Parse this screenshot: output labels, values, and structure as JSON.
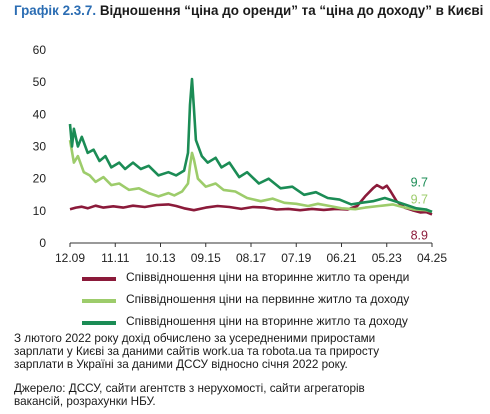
{
  "title_lead": "Графік 2.3.7.",
  "title_rest": "Відношення “ціна до оренди” та “ціна до доходу” в Києві",
  "note_lines": [
    "З лютого 2022 року дохід обчислено за усередненими приростами",
    "зарплати у Києві за даними сайтів work.ua та robota.ua та приросту",
    "зарплати в Україні за даними ДССУ відносно січня 2022 року."
  ],
  "source_lines": [
    "Джерело: ДССУ, сайти агентств з нерухомості, сайти агрегаторів",
    "вакансій, розрахунки НБУ."
  ],
  "chart_data": {
    "type": "line",
    "title": "Відношення “ціна до оренди” та “ціна до доходу” в Києві",
    "x_tick_labels": [
      "12.09",
      "11.11",
      "10.13",
      "09.15",
      "08.17",
      "07.19",
      "06.21",
      "05.23",
      "04.25"
    ],
    "x_start": "2009-12",
    "x_end": "2025-04",
    "ylim": [
      0,
      60
    ],
    "y_ticks": [
      0,
      10,
      20,
      30,
      40,
      50,
      60
    ],
    "grid": false,
    "legend_position": "bottom",
    "annotations": [
      {
        "text": "9.7",
        "series": "Співвідношення ціни на вторинне житло та доходу",
        "color": "#1b8c55"
      },
      {
        "text": "9.7",
        "series": "Співвідношення ціни на первинне житло та доходу",
        "color": "#9dcc6b"
      },
      {
        "text": "8.9",
        "series": "Співвідношення ціни на вторинне житло та оренди",
        "color": "#8b1a3a"
      }
    ],
    "series": [
      {
        "name": "Співвідношення ціни на вторинне житло та оренди",
        "color": "#8b1a3a",
        "points": [
          [
            "2009-12",
            10.5
          ],
          [
            "2010-03",
            11.0
          ],
          [
            "2010-06",
            11.3
          ],
          [
            "2010-09",
            10.8
          ],
          [
            "2011-01",
            11.6
          ],
          [
            "2011-05",
            11.0
          ],
          [
            "2011-10",
            11.4
          ],
          [
            "2012-03",
            11.0
          ],
          [
            "2012-08",
            11.6
          ],
          [
            "2013-02",
            11.2
          ],
          [
            "2013-08",
            11.8
          ],
          [
            "2014-02",
            12.0
          ],
          [
            "2014-06",
            11.5
          ],
          [
            "2014-10",
            10.8
          ],
          [
            "2015-03",
            10.2
          ],
          [
            "2015-09",
            11.0
          ],
          [
            "2016-03",
            11.5
          ],
          [
            "2016-09",
            11.2
          ],
          [
            "2017-03",
            10.6
          ],
          [
            "2017-09",
            11.2
          ],
          [
            "2018-03",
            11.0
          ],
          [
            "2018-09",
            10.4
          ],
          [
            "2019-03",
            10.6
          ],
          [
            "2019-09",
            10.2
          ],
          [
            "2020-03",
            10.6
          ],
          [
            "2020-09",
            10.3
          ],
          [
            "2021-03",
            10.6
          ],
          [
            "2021-09",
            10.4
          ],
          [
            "2022-02",
            11.5
          ],
          [
            "2022-06",
            14.5
          ],
          [
            "2022-10",
            17.0
          ],
          [
            "2022-12",
            18.0
          ],
          [
            "2023-03",
            17.0
          ],
          [
            "2023-05",
            17.8
          ],
          [
            "2023-07",
            16.0
          ],
          [
            "2023-10",
            13.0
          ],
          [
            "2024-02",
            11.0
          ],
          [
            "2024-06",
            10.2
          ],
          [
            "2024-10",
            9.5
          ],
          [
            "2025-01",
            9.6
          ],
          [
            "2025-04",
            8.9
          ]
        ]
      },
      {
        "name": "Співвідношення ціни на первинне житло та доходу",
        "color": "#9dcc6b",
        "points": [
          [
            "2009-12",
            32.0
          ],
          [
            "2010-02",
            25.0
          ],
          [
            "2010-04",
            27.0
          ],
          [
            "2010-07",
            22.0
          ],
          [
            "2010-10",
            21.0
          ],
          [
            "2011-01",
            19.0
          ],
          [
            "2011-05",
            20.5
          ],
          [
            "2011-09",
            18.0
          ],
          [
            "2012-01",
            18.5
          ],
          [
            "2012-06",
            16.5
          ],
          [
            "2012-11",
            17.0
          ],
          [
            "2013-04",
            15.5
          ],
          [
            "2013-09",
            14.5
          ],
          [
            "2014-02",
            15.5
          ],
          [
            "2014-05",
            14.8
          ],
          [
            "2014-09",
            16.0
          ],
          [
            "2014-12",
            18.5
          ],
          [
            "2015-01",
            24.0
          ],
          [
            "2015-02",
            28.0
          ],
          [
            "2015-03",
            26.0
          ],
          [
            "2015-05",
            20.0
          ],
          [
            "2015-09",
            17.5
          ],
          [
            "2016-02",
            18.5
          ],
          [
            "2016-06",
            16.5
          ],
          [
            "2016-12",
            16.0
          ],
          [
            "2017-06",
            14.0
          ],
          [
            "2018-01",
            13.0
          ],
          [
            "2018-07",
            13.8
          ],
          [
            "2019-01",
            12.5
          ],
          [
            "2019-07",
            12.2
          ],
          [
            "2020-01",
            11.5
          ],
          [
            "2020-06",
            12.2
          ],
          [
            "2020-12",
            11.5
          ],
          [
            "2021-06",
            10.8
          ],
          [
            "2022-01",
            10.5
          ],
          [
            "2022-06",
            11.0
          ],
          [
            "2023-01",
            11.5
          ],
          [
            "2023-08",
            12.0
          ],
          [
            "2024-01",
            11.2
          ],
          [
            "2024-07",
            10.4
          ],
          [
            "2025-01",
            10.2
          ],
          [
            "2025-04",
            9.7
          ]
        ]
      },
      {
        "name": "Співвідношення ціни на вторинне житло та доходу",
        "color": "#1b8c55",
        "points": [
          [
            "2009-12",
            37.0
          ],
          [
            "2010-01",
            30.0
          ],
          [
            "2010-02",
            35.5
          ],
          [
            "2010-04",
            30.0
          ],
          [
            "2010-06",
            33.0
          ],
          [
            "2010-09",
            28.0
          ],
          [
            "2010-12",
            29.0
          ],
          [
            "2011-03",
            25.5
          ],
          [
            "2011-06",
            27.0
          ],
          [
            "2011-09",
            23.5
          ],
          [
            "2012-01",
            25.0
          ],
          [
            "2012-04",
            23.0
          ],
          [
            "2012-08",
            25.0
          ],
          [
            "2012-12",
            23.0
          ],
          [
            "2013-04",
            24.0
          ],
          [
            "2013-09",
            21.0
          ],
          [
            "2014-02",
            22.0
          ],
          [
            "2014-06",
            21.0
          ],
          [
            "2014-10",
            22.5
          ],
          [
            "2014-12",
            28.0
          ],
          [
            "2015-01",
            43.0
          ],
          [
            "2015-02",
            51.0
          ],
          [
            "2015-03",
            42.0
          ],
          [
            "2015-04",
            32.0
          ],
          [
            "2015-07",
            27.0
          ],
          [
            "2015-10",
            25.0
          ],
          [
            "2016-02",
            26.5
          ],
          [
            "2016-05",
            23.5
          ],
          [
            "2016-09",
            25.0
          ],
          [
            "2017-02",
            20.5
          ],
          [
            "2017-06",
            22.0
          ],
          [
            "2017-12",
            18.5
          ],
          [
            "2018-05",
            20.0
          ],
          [
            "2018-11",
            17.0
          ],
          [
            "2019-05",
            17.5
          ],
          [
            "2019-11",
            15.0
          ],
          [
            "2020-05",
            15.8
          ],
          [
            "2020-11",
            14.0
          ],
          [
            "2021-05",
            13.5
          ],
          [
            "2021-11",
            12.0
          ],
          [
            "2022-04",
            12.5
          ],
          [
            "2022-10",
            13.0
          ],
          [
            "2023-04",
            14.0
          ],
          [
            "2023-08",
            13.2
          ],
          [
            "2024-02",
            12.0
          ],
          [
            "2024-08",
            10.8
          ],
          [
            "2025-01",
            10.4
          ],
          [
            "2025-04",
            9.7
          ]
        ]
      }
    ]
  }
}
